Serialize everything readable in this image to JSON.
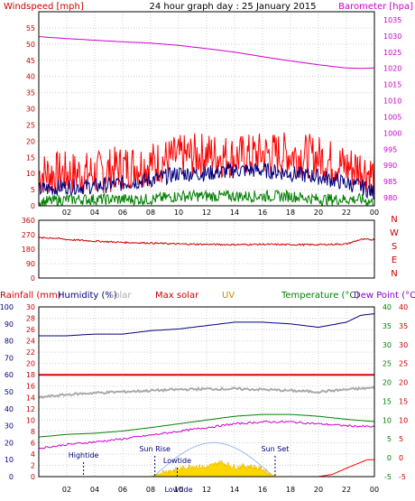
{
  "chart_data": [
    {
      "type": "line",
      "title": "24 hour graph day : 25 January 2015",
      "ylabel": "Windspeed [mph]",
      "y2label": "Barometer [hpa]",
      "xticks": [
        "02",
        "04",
        "06",
        "08",
        "10",
        "12",
        "14",
        "16",
        "18",
        "20",
        "22",
        "00"
      ],
      "ylim": [
        0,
        60
      ],
      "yticks": [
        0,
        5,
        10,
        15,
        20,
        25,
        30,
        35,
        40,
        45,
        50,
        55
      ],
      "y2lim": [
        977.5,
        1037.5
      ],
      "y2ticks": [
        980,
        985,
        990,
        995,
        1000,
        1005,
        1010,
        1015,
        1020,
        1025,
        1030,
        1035
      ],
      "grid": true,
      "series": [
        {
          "color": "#cc00cc",
          "axis": "right",
          "x": [
            0,
            2,
            4,
            6,
            8,
            10,
            12,
            14,
            16,
            18,
            20,
            22,
            23,
            24
          ],
          "values": [
            1029.8,
            1029.2,
            1028.7,
            1028.2,
            1027.8,
            1027.1,
            1026.1,
            1025.0,
            1023.6,
            1022.3,
            1021.1,
            1020.1,
            1020.0,
            1020.1
          ]
        },
        {
          "color": "#ff0000",
          "axis": "left",
          "x": [
            0,
            2,
            4,
            6,
            8,
            10,
            12,
            14,
            16,
            18,
            20,
            22,
            23,
            24
          ],
          "values": [
            10,
            10,
            10,
            12,
            13,
            15,
            16,
            15,
            16,
            16,
            15,
            12,
            12,
            9
          ]
        },
        {
          "color": "#000080",
          "axis": "left",
          "x": [
            0,
            2,
            4,
            6,
            8,
            10,
            12,
            14,
            16,
            18,
            20,
            22,
            23,
            24
          ],
          "values": [
            5,
            6,
            6,
            7,
            8,
            10,
            10,
            11,
            11,
            10,
            9,
            7,
            6,
            4
          ]
        },
        {
          "color": "#008000",
          "axis": "left",
          "x": [
            0,
            2,
            4,
            6,
            8,
            10,
            12,
            14,
            16,
            18,
            20,
            22,
            23,
            24
          ],
          "values": [
            1,
            2,
            2,
            2,
            2,
            3,
            3,
            3,
            3,
            3,
            2,
            2,
            2,
            1
          ]
        }
      ]
    },
    {
      "type": "line",
      "ylim": [
        0,
        360
      ],
      "yticks": [
        0,
        90,
        180,
        270,
        360
      ],
      "ylabels_right": [
        "N",
        "W",
        "S",
        "E",
        "N"
      ],
      "grid": true,
      "series": [
        {
          "color": "#cc0000",
          "x": [
            0,
            1,
            2,
            4,
            6,
            8,
            10,
            12,
            14,
            16,
            18,
            20,
            22,
            23,
            24
          ],
          "values": [
            250,
            250,
            240,
            230,
            222,
            218,
            212,
            210,
            208,
            210,
            208,
            208,
            212,
            240,
            240
          ]
        }
      ]
    },
    {
      "type": "line",
      "legend": [
        "Rainfall (mm)",
        "Humidity (%)",
        "Solar",
        "Max solar",
        "UV",
        "Temperature (°C)",
        "Dew Point (°C)"
      ],
      "ylim": [
        0,
        30
      ],
      "yticks": [
        0,
        2,
        4,
        6,
        8,
        10,
        12,
        14,
        16,
        18,
        20,
        22,
        24,
        26,
        28,
        30
      ],
      "ylim2": [
        0,
        100
      ],
      "yticks2": [
        0,
        10,
        20,
        30,
        40,
        50,
        60,
        70,
        80,
        90,
        100
      ],
      "y2lim": [
        -5,
        40
      ],
      "y2ticks": [
        -5,
        0,
        5,
        10,
        15,
        20,
        25,
        30,
        35,
        40
      ],
      "annotations": [
        "Hightide",
        "Sun Rise",
        "Lowtide",
        "Sun Set",
        "Lowtide"
      ],
      "grid": true,
      "series": [
        {
          "name": "Humidity (%)",
          "color": "#000080",
          "axis": "humidity",
          "x": [
            0,
            2,
            4,
            6,
            8,
            10,
            12,
            14,
            16,
            18,
            20,
            22,
            23,
            24
          ],
          "values": [
            83,
            83,
            84,
            84,
            86,
            87,
            89,
            91,
            91,
            90,
            88,
            91,
            95,
            96
          ]
        },
        {
          "name": "Max solar",
          "color": "#dd0000",
          "axis": "rain",
          "x": [
            0,
            6,
            12,
            18,
            24
          ],
          "values": [
            18,
            18,
            18,
            18,
            18
          ]
        },
        {
          "name": "Temperature (°C)",
          "color": "#008000",
          "axis": "temperature",
          "x": [
            0,
            2,
            4,
            6,
            8,
            10,
            12,
            14,
            16,
            18,
            20,
            22,
            24
          ],
          "values": [
            5.5,
            6.2,
            6.5,
            7.1,
            8.0,
            9.0,
            10.0,
            11.0,
            11.5,
            11.5,
            11.0,
            10.2,
            9.6
          ]
        },
        {
          "name": "Dew Point (°C)",
          "color": "#cc00cc",
          "axis": "temperature",
          "x": [
            0,
            2,
            4,
            6,
            8,
            10,
            12,
            14,
            16,
            18,
            20,
            22,
            24
          ],
          "values": [
            2.5,
            3.5,
            4.2,
            5.0,
            6.0,
            7.0,
            8.0,
            9.0,
            9.5,
            9.5,
            9.0,
            8.5,
            8.2
          ]
        },
        {
          "name": "Solar",
          "color": "#aaaaaa",
          "axis": "rain",
          "x": [
            0,
            2,
            4,
            6,
            8,
            10,
            12,
            14,
            16,
            18,
            20,
            22,
            24
          ],
          "values": [
            14,
            14.5,
            14.8,
            15,
            15.2,
            15.4,
            15.5,
            15.5,
            15.4,
            15.2,
            15,
            15.4,
            15.7
          ]
        },
        {
          "name": "Rainfall (mm)",
          "color": "#ff0000",
          "axis": "rain",
          "x": [
            0,
            20,
            21,
            22,
            23,
            23.5,
            24
          ],
          "values": [
            0,
            0,
            0.4,
            1.5,
            2.5,
            3,
            3
          ]
        },
        {
          "name": "UV",
          "color": "#ffd700",
          "axis": "rain",
          "x": [
            0,
            8,
            8.5,
            9,
            10,
            11,
            12,
            13,
            14,
            15,
            16,
            16.5,
            17,
            24
          ],
          "values": [
            0,
            0,
            0.4,
            0.8,
            1.2,
            1.8,
            1.5,
            2.5,
            1.6,
            1.8,
            1.2,
            0.5,
            0,
            0
          ]
        }
      ]
    }
  ]
}
